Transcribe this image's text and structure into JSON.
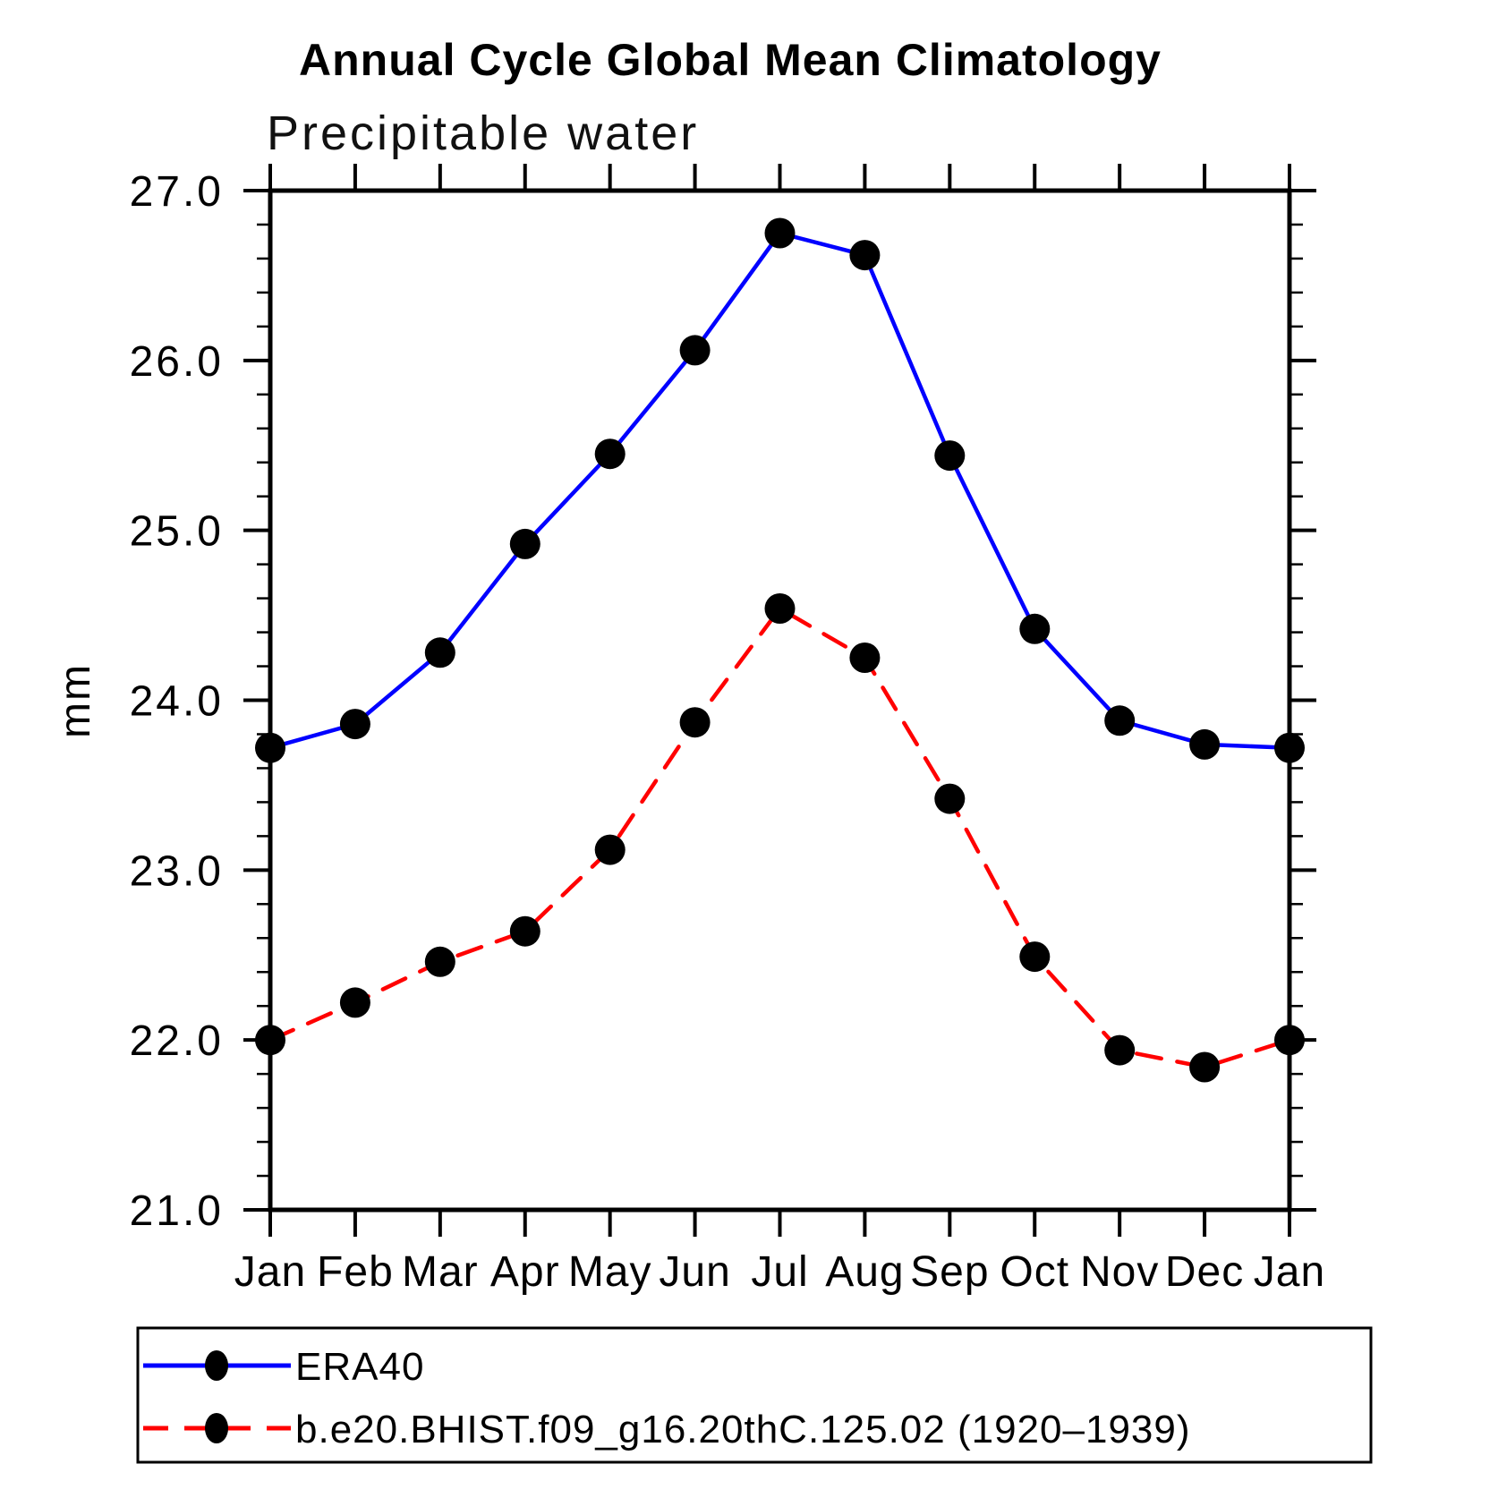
{
  "header": {
    "title": "Annual Cycle Global Mean Climatology",
    "subtitle": "Precipitable water"
  },
  "chart_data": {
    "type": "line",
    "title": "Annual Cycle Global Mean Climatology",
    "subtitle": "Precipitable water",
    "ylabel": "mm",
    "x_labels": [
      "Jan",
      "Feb",
      "Mar",
      "Apr",
      "May",
      "Jun",
      "Jul",
      "Aug",
      "Sep",
      "Oct",
      "Nov",
      "Dec",
      "Jan"
    ],
    "ylim": [
      21.0,
      27.0
    ],
    "y_major_ticks": [
      21,
      22,
      23,
      24,
      25,
      26,
      27
    ],
    "y_tick_labels": [
      "21.0",
      "22.0",
      "23.0",
      "24.0",
      "25.0",
      "26.0",
      "27.0"
    ],
    "y_minor_step": 0.2,
    "grid": false,
    "frame": "full-box-outward-ticks",
    "legend_position": "bottom-left-box",
    "colors": {
      "axis": "#000000",
      "marker": "#000000",
      "era40": "#0000ff",
      "model": "#ff0000"
    },
    "series": [
      {
        "name": "ERA40",
        "color": "#0000ff",
        "line_style": "solid",
        "marker": "filled-circle",
        "marker_color": "#000000",
        "values": [
          23.72,
          23.86,
          24.28,
          24.92,
          25.45,
          26.06,
          26.75,
          26.62,
          25.44,
          24.42,
          23.88,
          23.74,
          23.72
        ]
      },
      {
        "name": "b.e20.BHIST.f09_g16.20thC.125.02 (1920–1939)",
        "color": "#ff0000",
        "line_style": "dashed",
        "marker": "filled-circle",
        "marker_color": "#000000",
        "values": [
          22.0,
          22.22,
          22.46,
          22.64,
          23.12,
          23.87,
          24.54,
          24.25,
          23.42,
          22.49,
          21.94,
          21.84,
          22.0
        ]
      }
    ]
  }
}
